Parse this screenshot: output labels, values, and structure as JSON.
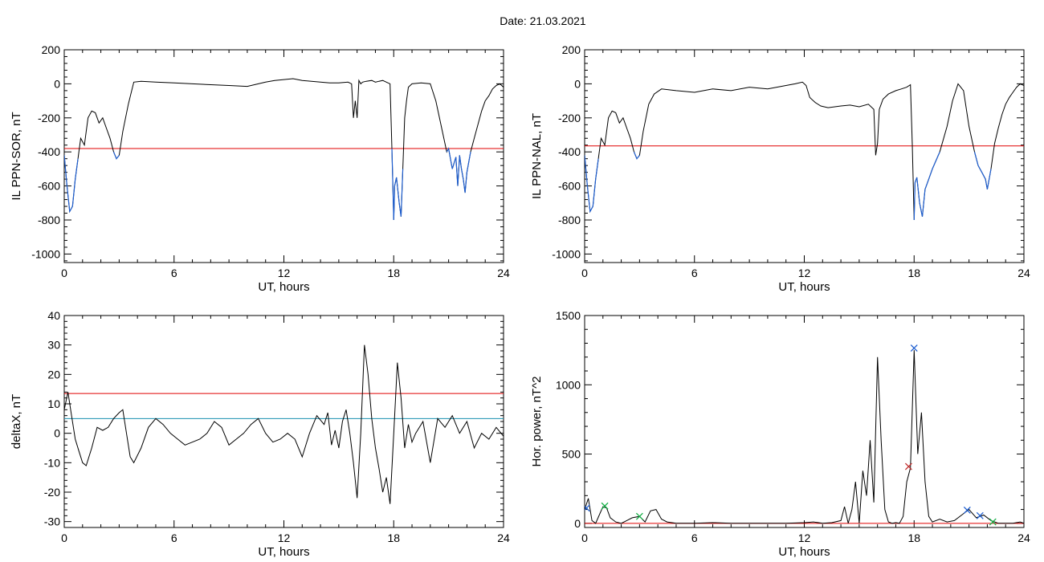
{
  "page": {
    "title": "Date:  21.03.2021"
  },
  "chart_data": [
    {
      "type": "line",
      "xlabel": "UT, hours",
      "ylabel": "IL PPN-SOR, nT",
      "xlim": [
        0,
        24
      ],
      "ylim": [
        -1050,
        200
      ],
      "xticks": [
        0,
        6,
        12,
        18,
        24
      ],
      "yticks": [
        200,
        0,
        -200,
        -400,
        -600,
        -800,
        -1000
      ],
      "threshold_lines": [
        {
          "y": -380,
          "color": "#e00000"
        }
      ],
      "highlight_below_threshold_color": "#1f5fd0",
      "series": [
        {
          "color": "#000000",
          "x": [
            0,
            0.15,
            0.3,
            0.45,
            0.6,
            0.75,
            0.9,
            1.1,
            1.3,
            1.5,
            1.7,
            1.9,
            2.1,
            2.3,
            2.5,
            2.7,
            2.85,
            3.0,
            3.2,
            3.5,
            3.8,
            4.2,
            5,
            6,
            7,
            8,
            9,
            10,
            11,
            11.5,
            12,
            12.5,
            13,
            13.5,
            14,
            14.5,
            15,
            15.5,
            15.7,
            15.8,
            15.9,
            16.0,
            16.1,
            16.2,
            16.3,
            16.5,
            16.8,
            17.0,
            17.2,
            17.4,
            17.6,
            17.8,
            17.9,
            18.0,
            18.05,
            18.15,
            18.3,
            18.4,
            18.5,
            18.6,
            18.7,
            18.8,
            19.0,
            19.5,
            20.0,
            20.3,
            20.6,
            20.9,
            21.0,
            21.2,
            21.4,
            21.5,
            21.6,
            21.7,
            21.8,
            21.9,
            22.0,
            22.2,
            22.4,
            22.6,
            22.8,
            23.0,
            23.2,
            23.4,
            23.6,
            23.8,
            24.0
          ],
          "y": [
            -420,
            -600,
            -750,
            -720,
            -560,
            -440,
            -320,
            -360,
            -200,
            -160,
            -170,
            -230,
            -200,
            -260,
            -320,
            -400,
            -440,
            -420,
            -280,
            -120,
            10,
            15,
            10,
            5,
            0,
            -5,
            -10,
            -15,
            10,
            20,
            25,
            30,
            20,
            15,
            10,
            5,
            5,
            10,
            0,
            -200,
            -100,
            -200,
            20,
            0,
            10,
            15,
            20,
            10,
            15,
            20,
            10,
            0,
            -380,
            -800,
            -600,
            -550,
            -700,
            -780,
            -500,
            -200,
            -100,
            -20,
            0,
            5,
            0,
            -100,
            -250,
            -400,
            -380,
            -500,
            -430,
            -600,
            -420,
            -500,
            -560,
            -640,
            -520,
            -400,
            -320,
            -240,
            -160,
            -100,
            -70,
            -30,
            -10,
            0,
            -20
          ]
        }
      ]
    },
    {
      "type": "line",
      "xlabel": "UT, hours",
      "ylabel": "IL PPN-NAL, nT",
      "xlim": [
        0,
        24
      ],
      "ylim": [
        -1050,
        200
      ],
      "xticks": [
        0,
        6,
        12,
        18,
        24
      ],
      "yticks": [
        200,
        0,
        -200,
        -400,
        -600,
        -800,
        -1000
      ],
      "threshold_lines": [
        {
          "y": -365,
          "color": "#e00000"
        }
      ],
      "highlight_below_threshold_color": "#1f5fd0",
      "series": [
        {
          "color": "#000000",
          "x": [
            0,
            0.15,
            0.3,
            0.45,
            0.6,
            0.75,
            0.9,
            1.1,
            1.3,
            1.5,
            1.7,
            1.9,
            2.1,
            2.3,
            2.5,
            2.7,
            2.85,
            3.0,
            3.2,
            3.5,
            3.8,
            4.2,
            5,
            6,
            7,
            8,
            9,
            10,
            11,
            11.5,
            11.9,
            12.1,
            12.3,
            12.6,
            12.9,
            13.3,
            14,
            14.5,
            15,
            15.5,
            15.8,
            15.9,
            16.0,
            16.1,
            16.3,
            16.6,
            17.0,
            17.3,
            17.6,
            17.8,
            17.9,
            18.0,
            18.05,
            18.15,
            18.3,
            18.45,
            18.6,
            18.8,
            19.0,
            19.4,
            19.8,
            20.1,
            20.4,
            20.7,
            21.0,
            21.3,
            21.5,
            21.7,
            21.9,
            22.0,
            22.2,
            22.4,
            22.6,
            22.8,
            23.0,
            23.2,
            23.4,
            23.6,
            23.8,
            24.0
          ],
          "y": [
            -420,
            -600,
            -750,
            -720,
            -560,
            -440,
            -320,
            -360,
            -200,
            -160,
            -170,
            -230,
            -200,
            -260,
            -320,
            -400,
            -440,
            -420,
            -280,
            -120,
            -60,
            -30,
            -40,
            -50,
            -30,
            -40,
            -20,
            -30,
            -10,
            0,
            10,
            -10,
            -80,
            -110,
            -130,
            -140,
            -130,
            -125,
            -135,
            -120,
            -150,
            -420,
            -350,
            -150,
            -90,
            -60,
            -40,
            -30,
            -20,
            -5,
            -360,
            -800,
            -580,
            -550,
            -700,
            -780,
            -620,
            -560,
            -500,
            -400,
            -250,
            -100,
            0,
            -40,
            -250,
            -400,
            -480,
            -520,
            -560,
            -620,
            -500,
            -350,
            -260,
            -180,
            -120,
            -80,
            -50,
            -20,
            0,
            -10
          ]
        }
      ]
    },
    {
      "type": "line",
      "xlabel": "UT, hours",
      "ylabel": "deltaX, nT",
      "xlim": [
        0,
        24
      ],
      "ylim": [
        -32,
        40
      ],
      "xticks": [
        0,
        6,
        12,
        18,
        24
      ],
      "yticks": [
        40,
        30,
        20,
        10,
        0,
        -10,
        -20,
        -30
      ],
      "threshold_lines": [
        {
          "y": 13.5,
          "color": "#e00000"
        },
        {
          "y": 5,
          "color": "#1a8fb0"
        }
      ],
      "series": [
        {
          "color": "#000000",
          "x": [
            0,
            0.2,
            0.4,
            0.6,
            0.8,
            1.0,
            1.2,
            1.5,
            1.8,
            2.1,
            2.4,
            2.7,
            3.0,
            3.2,
            3.4,
            3.6,
            3.8,
            4.2,
            4.6,
            5.0,
            5.4,
            5.8,
            6.2,
            6.6,
            7.0,
            7.4,
            7.8,
            8.2,
            8.6,
            9.0,
            9.4,
            9.8,
            10.2,
            10.6,
            11.0,
            11.4,
            11.8,
            12.2,
            12.6,
            13.0,
            13.4,
            13.8,
            14.2,
            14.4,
            14.6,
            14.8,
            15.0,
            15.2,
            15.4,
            15.6,
            15.8,
            16.0,
            16.2,
            16.4,
            16.6,
            16.8,
            17.0,
            17.2,
            17.4,
            17.6,
            17.8,
            18.0,
            18.2,
            18.4,
            18.6,
            18.8,
            19.0,
            19.2,
            19.6,
            20.0,
            20.4,
            20.8,
            21.2,
            21.6,
            22.0,
            22.4,
            22.8,
            23.2,
            23.6,
            24.0
          ],
          "y": [
            8,
            14,
            6,
            -2,
            -6,
            -10,
            -11,
            -5,
            2,
            1,
            2,
            5,
            7,
            8,
            0,
            -8,
            -10,
            -5,
            2,
            5,
            3,
            0,
            -2,
            -4,
            -3,
            -2,
            0,
            4,
            2,
            -4,
            -2,
            0,
            3,
            5,
            0,
            -3,
            -2,
            0,
            -2,
            -8,
            0,
            6,
            3,
            7,
            -4,
            1,
            -5,
            4,
            8,
            0,
            -10,
            -22,
            0,
            30,
            20,
            5,
            -5,
            -12,
            -20,
            -15,
            -24,
            0,
            24,
            12,
            -5,
            3,
            -3,
            0,
            4,
            -10,
            5,
            2,
            6,
            0,
            4,
            -5,
            0,
            -2,
            2,
            -1
          ]
        }
      ]
    },
    {
      "type": "line",
      "xlabel": "UT, hours",
      "ylabel": "Hor. power, nT^2",
      "xlim": [
        0,
        24
      ],
      "ylim": [
        -30,
        1500
      ],
      "xticks": [
        0,
        6,
        12,
        18,
        24
      ],
      "yticks": [
        1500,
        1000,
        500,
        0
      ],
      "threshold_lines": [
        {
          "y": 0,
          "color": "#e00000"
        }
      ],
      "series": [
        {
          "color": "#000000",
          "x": [
            0,
            0.2,
            0.4,
            0.6,
            0.8,
            1.0,
            1.2,
            1.4,
            1.7,
            2.0,
            2.3,
            2.6,
            3.0,
            3.3,
            3.6,
            3.9,
            4.2,
            4.5,
            5,
            6,
            7,
            8,
            9,
            10,
            11,
            12,
            12.5,
            13,
            13.5,
            14.0,
            14.2,
            14.4,
            14.6,
            14.8,
            15.0,
            15.2,
            15.4,
            15.6,
            15.8,
            16.0,
            16.2,
            16.4,
            16.6,
            16.8,
            17.0,
            17.2,
            17.4,
            17.6,
            17.8,
            18.0,
            18.2,
            18.4,
            18.6,
            18.8,
            19.0,
            19.4,
            19.8,
            20.2,
            20.6,
            21.0,
            21.4,
            21.8,
            22.2,
            22.6,
            23.0,
            23.4,
            23.8,
            24.0
          ],
          "y": [
            100,
            180,
            20,
            0,
            60,
            120,
            110,
            40,
            10,
            0,
            20,
            40,
            50,
            10,
            90,
            100,
            30,
            10,
            0,
            0,
            5,
            0,
            0,
            0,
            0,
            5,
            10,
            0,
            5,
            20,
            120,
            0,
            100,
            300,
            0,
            380,
            200,
            600,
            150,
            1200,
            600,
            100,
            10,
            0,
            5,
            0,
            50,
            300,
            400,
            1250,
            500,
            800,
            300,
            50,
            10,
            30,
            10,
            20,
            60,
            100,
            40,
            60,
            20,
            0,
            0,
            0,
            10,
            0
          ]
        }
      ],
      "markers": [
        {
          "x": 0.1,
          "y": 110,
          "color": "#1f5fd0"
        },
        {
          "x": 1.1,
          "y": 125,
          "color": "#18b048"
        },
        {
          "x": 3.0,
          "y": 50,
          "color": "#18b048"
        },
        {
          "x": 17.7,
          "y": 410,
          "color": "#c03030"
        },
        {
          "x": 18.0,
          "y": 1265,
          "color": "#1f5fd0"
        },
        {
          "x": 20.9,
          "y": 95,
          "color": "#1f5fd0"
        },
        {
          "x": 21.6,
          "y": 55,
          "color": "#1f5fd0"
        },
        {
          "x": 22.3,
          "y": 10,
          "color": "#18b048"
        }
      ]
    }
  ]
}
